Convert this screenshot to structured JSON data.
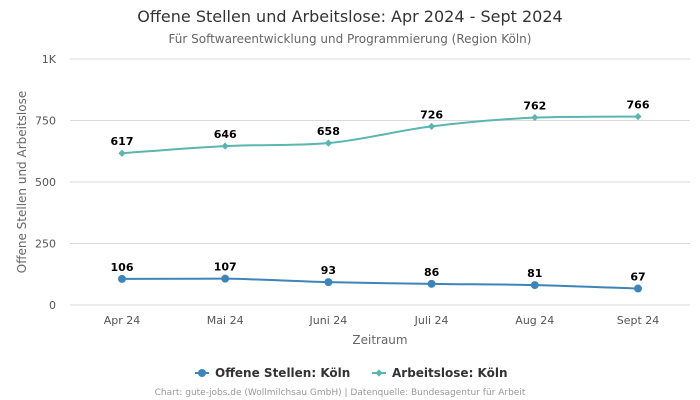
{
  "chart_data": {
    "type": "line",
    "title": "Offene Stellen und Arbeitslose: Apr 2024 - Sept 2024",
    "subtitle": "Für Softwareentwicklung und Programmierung (Region Köln)",
    "xlabel": "Zeitraum",
    "ylabel": "Offene Stellen und Arbeitslose",
    "categories": [
      "Apr 24",
      "Mai 24",
      "Juni 24",
      "Juli 24",
      "Aug 24",
      "Sept 24"
    ],
    "ylim": [
      0,
      1000
    ],
    "yticks": [
      0,
      250,
      500,
      750,
      1000
    ],
    "ytick_labels": [
      "0",
      "250",
      "500",
      "750",
      "1K"
    ],
    "series": [
      {
        "name": "Offene Stellen: Köln",
        "color": "#3d85b8",
        "marker": "circle",
        "values": [
          106,
          107,
          93,
          86,
          81,
          67
        ]
      },
      {
        "name": "Arbeitslose: Köln",
        "color": "#5bb5b0",
        "marker": "diamond",
        "values": [
          617,
          646,
          658,
          726,
          762,
          766
        ]
      }
    ],
    "legend": "bottom-center",
    "credit": "Chart: gute-jobs.de (Wollmilchsau GmbH) | Datenquelle: Bundesagentur für Arbeit"
  }
}
